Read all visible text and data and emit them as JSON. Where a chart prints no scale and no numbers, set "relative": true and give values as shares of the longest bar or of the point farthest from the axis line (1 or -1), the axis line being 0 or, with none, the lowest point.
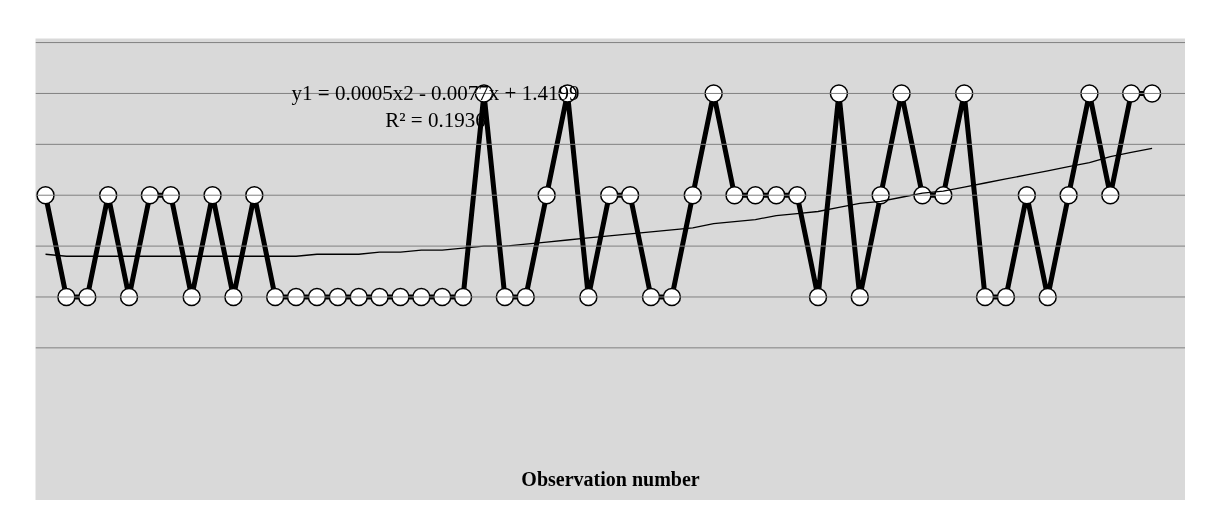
{
  "chart_data": {
    "type": "line",
    "relative": true,
    "categories": [
      null,
      null,
      null,
      null,
      null,
      null,
      null,
      null,
      null,
      null,
      null,
      null,
      null,
      null,
      null,
      null,
      null,
      null,
      null,
      null,
      null,
      null,
      null,
      null,
      null,
      null,
      null,
      null,
      null,
      null,
      null,
      null,
      null,
      null,
      null,
      null,
      null,
      null,
      null,
      null,
      null,
      null,
      null,
      null,
      null,
      null,
      null,
      null,
      null,
      null,
      null,
      null,
      null,
      null
    ],
    "series": [
      {
        "color": "#000000",
        "marker": "circle",
        "values": [
          0.5,
          0,
          0,
          0.5,
          0,
          0.5,
          0.5,
          0,
          0.5,
          0,
          0.5,
          0,
          0,
          0,
          0,
          0,
          0,
          0,
          0,
          0,
          0,
          1,
          0,
          0,
          0.5,
          1,
          0,
          0.5,
          0.5,
          0,
          0,
          0.5,
          1,
          0.5,
          0.5,
          0.5,
          0.5,
          0,
          1,
          0,
          0.5,
          1,
          0.5,
          0.5,
          1,
          0,
          0,
          0.5,
          0,
          0.5,
          1,
          0.5,
          1,
          1
        ]
      },
      {
        "type": "line",
        "color": "#000000",
        "marker": "none",
        "values": [
          0.21,
          0.2,
          0.2,
          0.2,
          0.2,
          0.2,
          0.2,
          0.2,
          0.2,
          0.2,
          0.2,
          0.2,
          0.2,
          0.21,
          0.21,
          0.21,
          0.22,
          0.22,
          0.23,
          0.23,
          0.24,
          0.25,
          0.25,
          0.26,
          0.27,
          0.28,
          0.29,
          0.3,
          0.31,
          0.32,
          0.33,
          0.34,
          0.36,
          0.37,
          0.38,
          0.4,
          0.41,
          0.42,
          0.44,
          0.46,
          0.47,
          0.49,
          0.51,
          0.52,
          0.54,
          0.56,
          0.58,
          0.6,
          0.62,
          0.64,
          0.66,
          0.69,
          0.71,
          0.73
        ]
      }
    ],
    "annotations": [
      "y1 = 0.0005x2 - 0.0077x + 1.4199",
      "R² = 0.1936",
      "Observation number"
    ],
    "grid": "y",
    "tick_labels": false
  }
}
